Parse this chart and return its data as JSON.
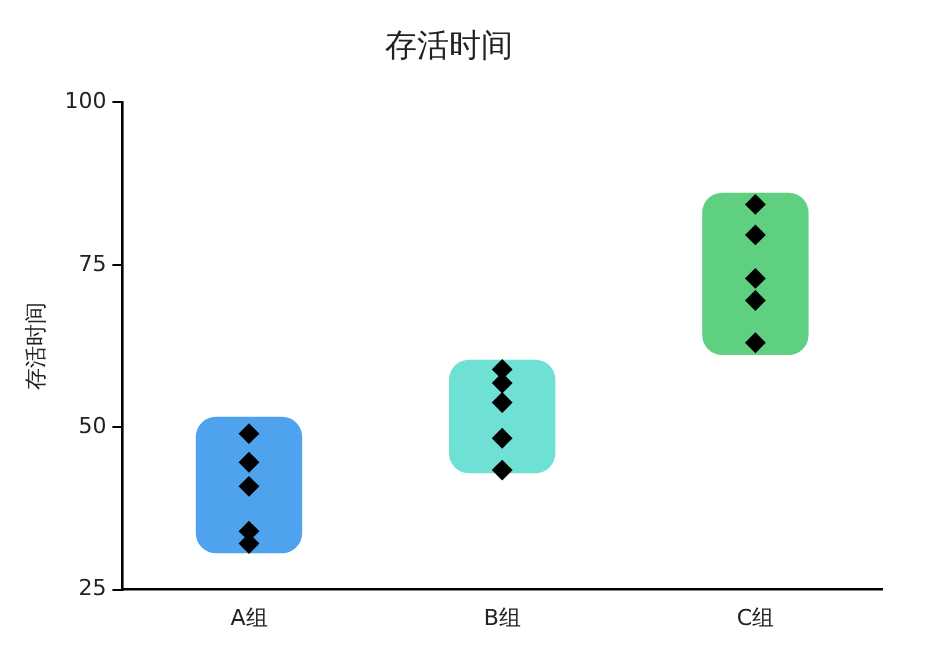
{
  "chart_data": {
    "type": "bar",
    "title": "存活时间",
    "ylabel": "存活时间",
    "categories": [
      "A组",
      "B组",
      "C组"
    ],
    "series": [
      {
        "colors": [
          "#4fa3ee",
          "#6fe0d4",
          "#5fcf80"
        ],
        "base": [
          30.6,
          42.9,
          61.1
        ],
        "values": [
          21.0,
          17.5,
          25.0
        ]
      },
      {
        "type": "scatter",
        "color": "#000000",
        "marker": "diamond",
        "x": [
          "A组",
          "A组",
          "A组",
          "A组",
          "A组",
          "B组",
          "B组",
          "B组",
          "B组",
          "B组",
          "C组",
          "C组",
          "C组",
          "C组",
          "C组"
        ],
        "values": [
          49.0,
          44.6,
          40.9,
          34.0,
          32.1,
          58.9,
          56.8,
          53.8,
          48.3,
          43.4,
          84.3,
          79.6,
          72.9,
          69.5,
          63.0
        ]
      }
    ],
    "ylim": [
      25,
      100
    ],
    "yticks": [
      25,
      50,
      75,
      100
    ],
    "grid": false,
    "legend": false
  }
}
